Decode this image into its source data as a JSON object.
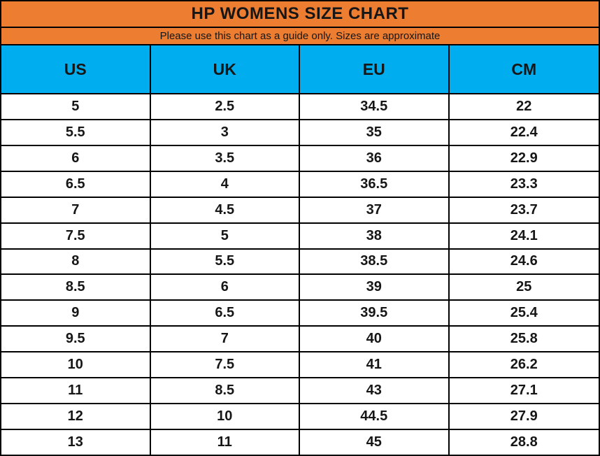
{
  "title": "HP WOMENS SIZE CHART",
  "subtitle": "Please use this chart as a guide only. Sizes are approximate",
  "colors": {
    "title_bg": "#ED7D31",
    "column_header_bg": "#00AEEF",
    "grid_border": "#000000",
    "row_bg": "#FFFFFF",
    "text": "#161616"
  },
  "chart_data": {
    "type": "table",
    "title": "HP WOMENS SIZE CHART",
    "subtitle": "Please use this chart as a guide only. Sizes are approximate",
    "columns": [
      "US",
      "UK",
      "EU",
      "CM"
    ],
    "rows": [
      [
        "5",
        "2.5",
        "34.5",
        "22"
      ],
      [
        "5.5",
        "3",
        "35",
        "22.4"
      ],
      [
        "6",
        "3.5",
        "36",
        "22.9"
      ],
      [
        "6.5",
        "4",
        "36.5",
        "23.3"
      ],
      [
        "7",
        "4.5",
        "37",
        "23.7"
      ],
      [
        "7.5",
        "5",
        "38",
        "24.1"
      ],
      [
        "8",
        "5.5",
        "38.5",
        "24.6"
      ],
      [
        "8.5",
        "6",
        "39",
        "25"
      ],
      [
        "9",
        "6.5",
        "39.5",
        "25.4"
      ],
      [
        "9.5",
        "7",
        "40",
        "25.8"
      ],
      [
        "10",
        "7.5",
        "41",
        "26.2"
      ],
      [
        "11",
        "8.5",
        "43",
        "27.1"
      ],
      [
        "12",
        "10",
        "44.5",
        "27.9"
      ],
      [
        "13",
        "11",
        "45",
        "28.8"
      ]
    ]
  }
}
